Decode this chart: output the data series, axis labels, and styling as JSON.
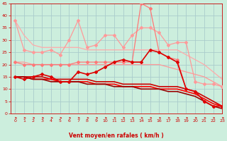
{
  "x": [
    0,
    1,
    2,
    3,
    4,
    5,
    6,
    7,
    8,
    9,
    10,
    11,
    12,
    13,
    14,
    15,
    16,
    17,
    18,
    19,
    20,
    21,
    22,
    23
  ],
  "series": [
    {
      "name": "lightest_pink_no_marker",
      "color": "#ffaaaa",
      "linewidth": 0.9,
      "marker": null,
      "markersize": 0,
      "y": [
        38,
        32,
        28,
        27,
        27,
        27,
        27,
        27,
        26,
        26,
        26,
        26,
        26,
        26,
        26,
        26,
        26,
        26,
        26,
        24,
        22,
        20,
        17,
        14
      ]
    },
    {
      "name": "light_pink_diamond",
      "color": "#ff9999",
      "linewidth": 0.9,
      "marker": "D",
      "markersize": 2.0,
      "y": [
        38,
        26,
        25,
        25,
        26,
        24,
        30,
        38,
        27,
        28,
        32,
        32,
        27,
        32,
        35,
        35,
        33,
        28,
        29,
        29,
        13,
        12,
        12,
        11
      ]
    },
    {
      "name": "medium_pink_no_marker",
      "color": "#ff9999",
      "linewidth": 0.9,
      "marker": null,
      "markersize": 0,
      "y": [
        21,
        21,
        20,
        20,
        20,
        20,
        20,
        20,
        20,
        20,
        20,
        20,
        20,
        20,
        20,
        20,
        20,
        19,
        18,
        17,
        16,
        15,
        13,
        11
      ]
    },
    {
      "name": "medium_pink_diamond",
      "color": "#ff7777",
      "linewidth": 0.9,
      "marker": "D",
      "markersize": 2.0,
      "y": [
        21,
        20,
        20,
        20,
        20,
        20,
        20,
        21,
        21,
        21,
        21,
        21,
        21,
        21,
        45,
        43,
        25,
        23,
        22,
        10,
        9,
        5,
        3,
        3
      ]
    },
    {
      "name": "dark_red_diamond",
      "color": "#dd0000",
      "linewidth": 1.2,
      "marker": "D",
      "markersize": 2.0,
      "y": [
        15,
        14,
        15,
        16,
        15,
        13,
        13,
        17,
        16,
        17,
        19,
        21,
        22,
        21,
        21,
        26,
        25,
        23,
        21,
        10,
        9,
        5,
        3,
        3
      ]
    },
    {
      "name": "red_line1",
      "color": "#cc0000",
      "linewidth": 1.2,
      "marker": null,
      "markersize": 0,
      "y": [
        15,
        15,
        15,
        15,
        14,
        14,
        14,
        14,
        14,
        13,
        13,
        13,
        12,
        12,
        12,
        12,
        11,
        11,
        11,
        10,
        9,
        7,
        5,
        3
      ]
    },
    {
      "name": "red_line2",
      "color": "#ff0000",
      "linewidth": 1.2,
      "marker": null,
      "markersize": 0,
      "y": [
        15,
        15,
        14,
        14,
        14,
        13,
        13,
        13,
        13,
        12,
        12,
        12,
        11,
        11,
        11,
        11,
        10,
        10,
        10,
        9,
        8,
        6,
        4,
        3
      ]
    },
    {
      "name": "dark_line3",
      "color": "#990000",
      "linewidth": 1.2,
      "marker": null,
      "markersize": 0,
      "y": [
        15,
        15,
        14,
        14,
        13,
        13,
        13,
        13,
        12,
        12,
        12,
        11,
        11,
        11,
        10,
        10,
        10,
        9,
        9,
        8,
        7,
        5,
        3,
        2
      ]
    }
  ],
  "xlabel": "Vent moyen/en rafales ( km/h )",
  "xlim": [
    -0.5,
    23
  ],
  "ylim": [
    0,
    45
  ],
  "yticks": [
    0,
    5,
    10,
    15,
    20,
    25,
    30,
    35,
    40,
    45
  ],
  "xticks": [
    0,
    1,
    2,
    3,
    4,
    5,
    6,
    7,
    8,
    9,
    10,
    11,
    12,
    13,
    14,
    15,
    16,
    17,
    18,
    19,
    20,
    21,
    22,
    23
  ],
  "bg_color": "#cceedd",
  "grid_color": "#aacccc",
  "tick_color": "#cc0000",
  "xlabel_color": "#cc0000"
}
